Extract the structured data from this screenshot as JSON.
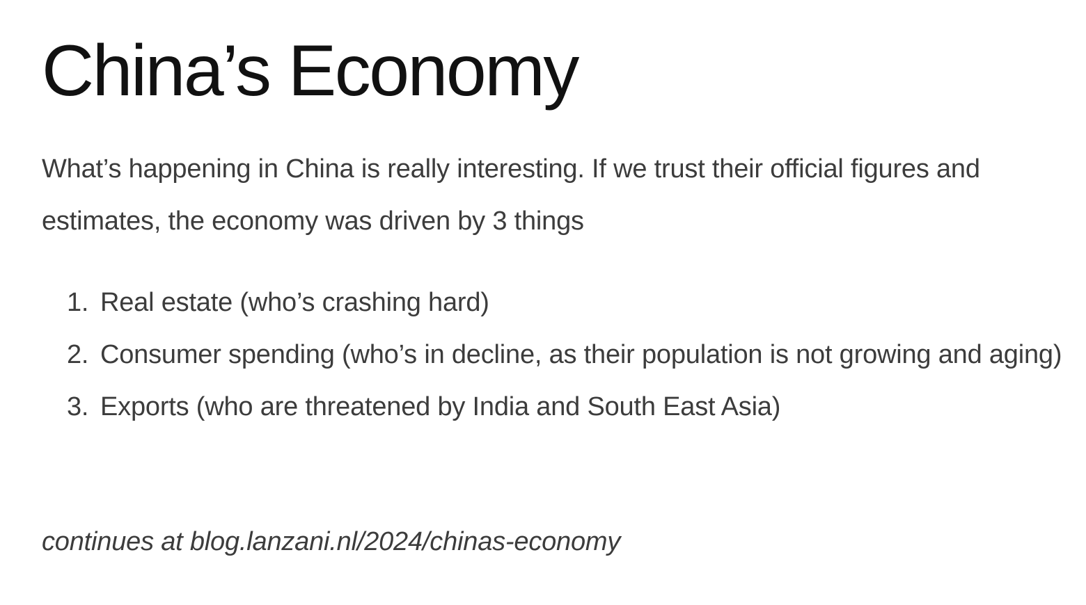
{
  "article": {
    "title": "China’s Economy",
    "intro": "What’s happening in China is really interesting. If we trust their official figures and estimates, the economy was driven by 3 things",
    "items": [
      {
        "number": "1.",
        "text": "Real estate (who’s crashing hard)"
      },
      {
        "number": "2.",
        "text": "Consumer spending (who’s in decline, as their population is not growing and aging)"
      },
      {
        "number": "3.",
        "text": "Exports (who are threatened by India and South East Asia)"
      }
    ],
    "continues": "continues at blog.lanzani.nl/2024/chinas-economy"
  },
  "colors": {
    "title": "#111111",
    "body": "#3c3c3c",
    "background": "#ffffff"
  }
}
